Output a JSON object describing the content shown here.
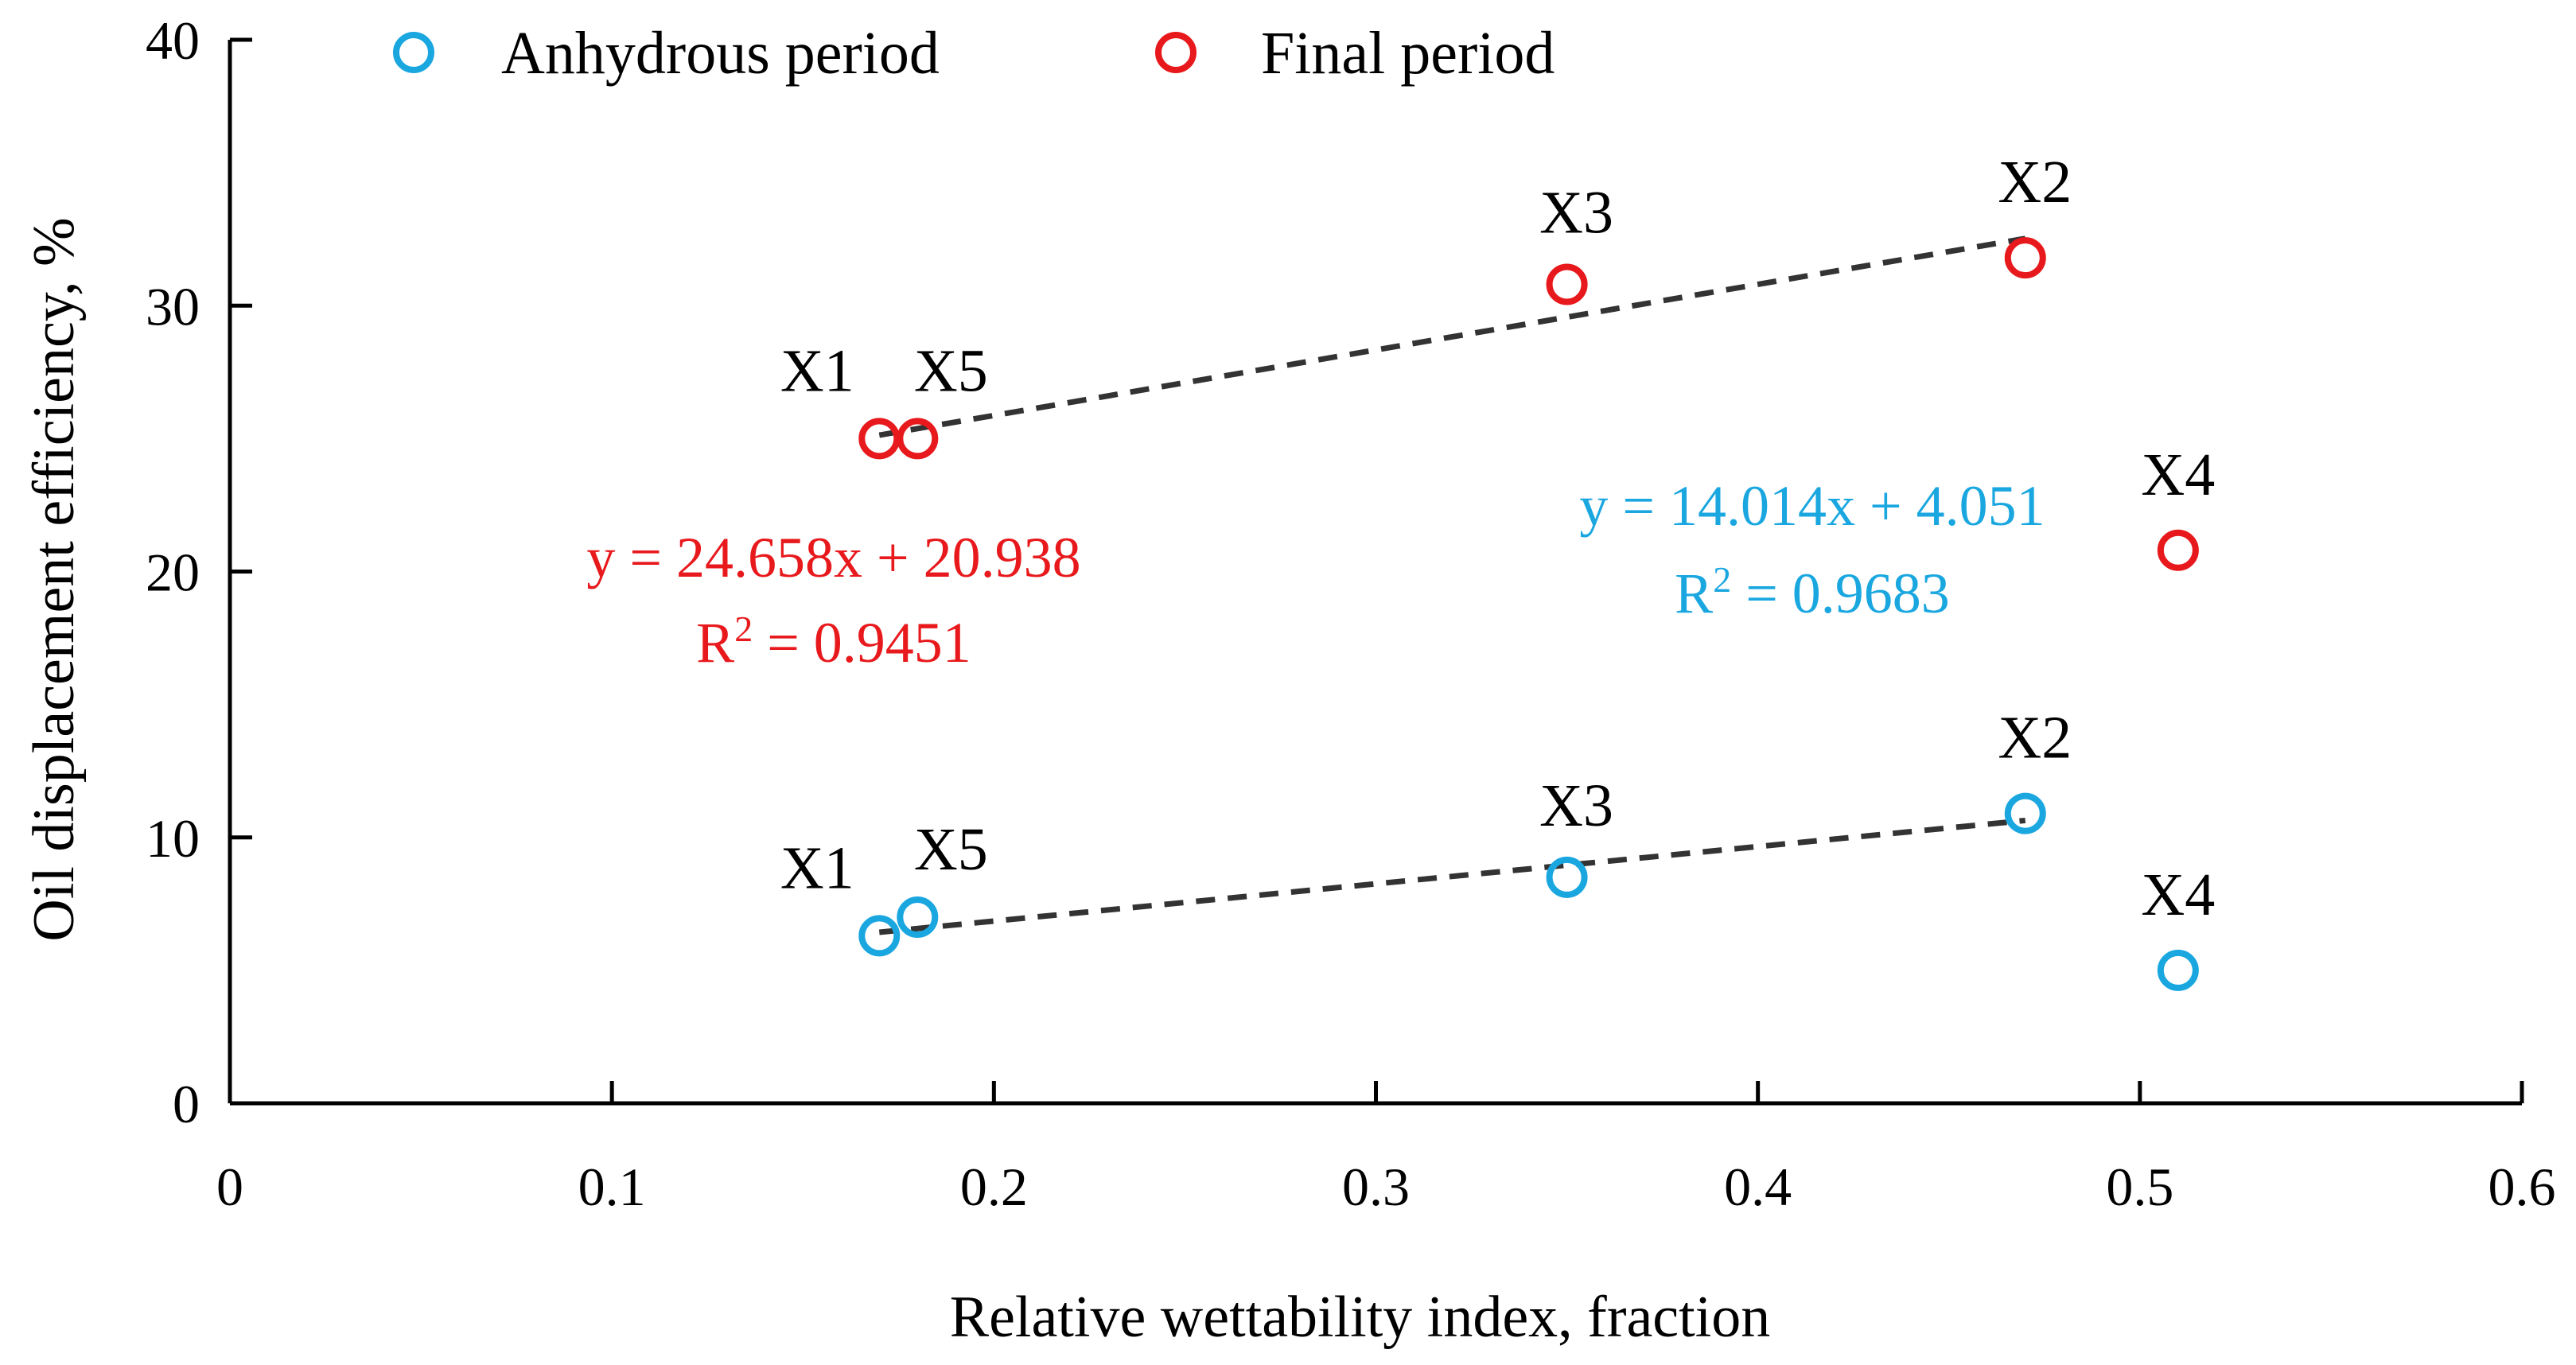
{
  "chart_data": {
    "type": "scatter",
    "xlabel": "Relative wettability index, fraction",
    "ylabel": "Oil displacement efficiency, %",
    "xlim": [
      0,
      0.6
    ],
    "ylim": [
      0,
      40
    ],
    "x_ticks": [
      "0",
      "0.1",
      "0.2",
      "0.3",
      "0.4",
      "0.5",
      "0.6"
    ],
    "y_ticks": [
      "0",
      "10",
      "20",
      "30",
      "40"
    ],
    "grid": false,
    "legend_position": "top",
    "series": [
      {
        "name": "Anhydrous period",
        "color": "#1aa7e0",
        "marker": "open-circle",
        "points": [
          {
            "label": "X1",
            "x": 0.17,
            "y": 6.3
          },
          {
            "label": "X5",
            "x": 0.18,
            "y": 7.0
          },
          {
            "label": "X3",
            "x": 0.35,
            "y": 8.5
          },
          {
            "label": "X2",
            "x": 0.47,
            "y": 10.9
          },
          {
            "label": "X4",
            "x": 0.51,
            "y": 5.0
          }
        ],
        "trendline": {
          "x_range": [
            0.17,
            0.47
          ],
          "slope": 14.014,
          "intercept": 4.051,
          "equation": "y = 14.014x + 4.051",
          "r2_prefix": "R",
          "r2_sup": "2",
          "r2_value": " = 0.9683"
        }
      },
      {
        "name": "Final period",
        "color": "#e8191c",
        "marker": "open-circle",
        "points": [
          {
            "label": "X1",
            "x": 0.17,
            "y": 25.0
          },
          {
            "label": "X5",
            "x": 0.18,
            "y": 25.0
          },
          {
            "label": "X3",
            "x": 0.35,
            "y": 30.8
          },
          {
            "label": "X2",
            "x": 0.47,
            "y": 31.8
          },
          {
            "label": "X4",
            "x": 0.51,
            "y": 20.8
          }
        ],
        "trendline": {
          "x_range": [
            0.17,
            0.47
          ],
          "slope": 24.658,
          "intercept": 20.938,
          "equation": "y = 24.658x + 20.938",
          "r2_prefix": "R",
          "r2_sup": "2",
          "r2_value": " = 0.9451"
        }
      }
    ],
    "trendline_color": "#333333"
  }
}
